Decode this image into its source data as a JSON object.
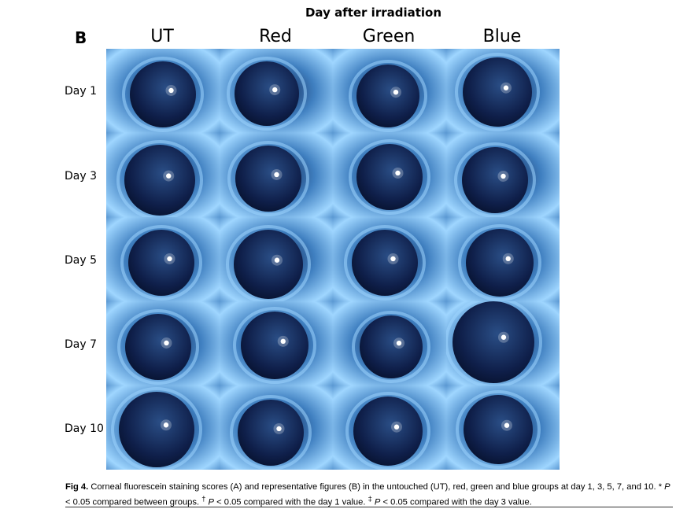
{
  "figure": {
    "supertitle": "Day after irradiation",
    "panel_label": "B",
    "columns": [
      "UT",
      "Red",
      "Green",
      "Blue"
    ],
    "rows": [
      "Day 1",
      "Day 3",
      "Day 5",
      "Day 7",
      "Day 10"
    ],
    "image_description": "corneal photograph"
  },
  "caption": {
    "fig_label": "Fig 4.",
    "text_1": " Corneal fluorescein staining scores (A) and representative figures (B) in the untouched (UT), red, green and blue groups at day 1, 3, 5, 7, and 10. * ",
    "p1": "P",
    "text_2": " < 0.05 compared between groups. ",
    "dagger": "†",
    "text_3": " ",
    "p2": "P",
    "text_4": " < 0.05 compared with the day 1 value. ",
    "ddagger": "‡",
    "text_5": " ",
    "p3": "P",
    "text_6": " < 0.05 compared with the day 3 value."
  },
  "colors": {
    "background": "#ffffff",
    "fur": "#3f7fc0",
    "fur_light": "#9fd6ff",
    "eye_dark": "#0f1f4a",
    "eye_mid": "#2a4e86",
    "highlight": "#ffffff"
  }
}
